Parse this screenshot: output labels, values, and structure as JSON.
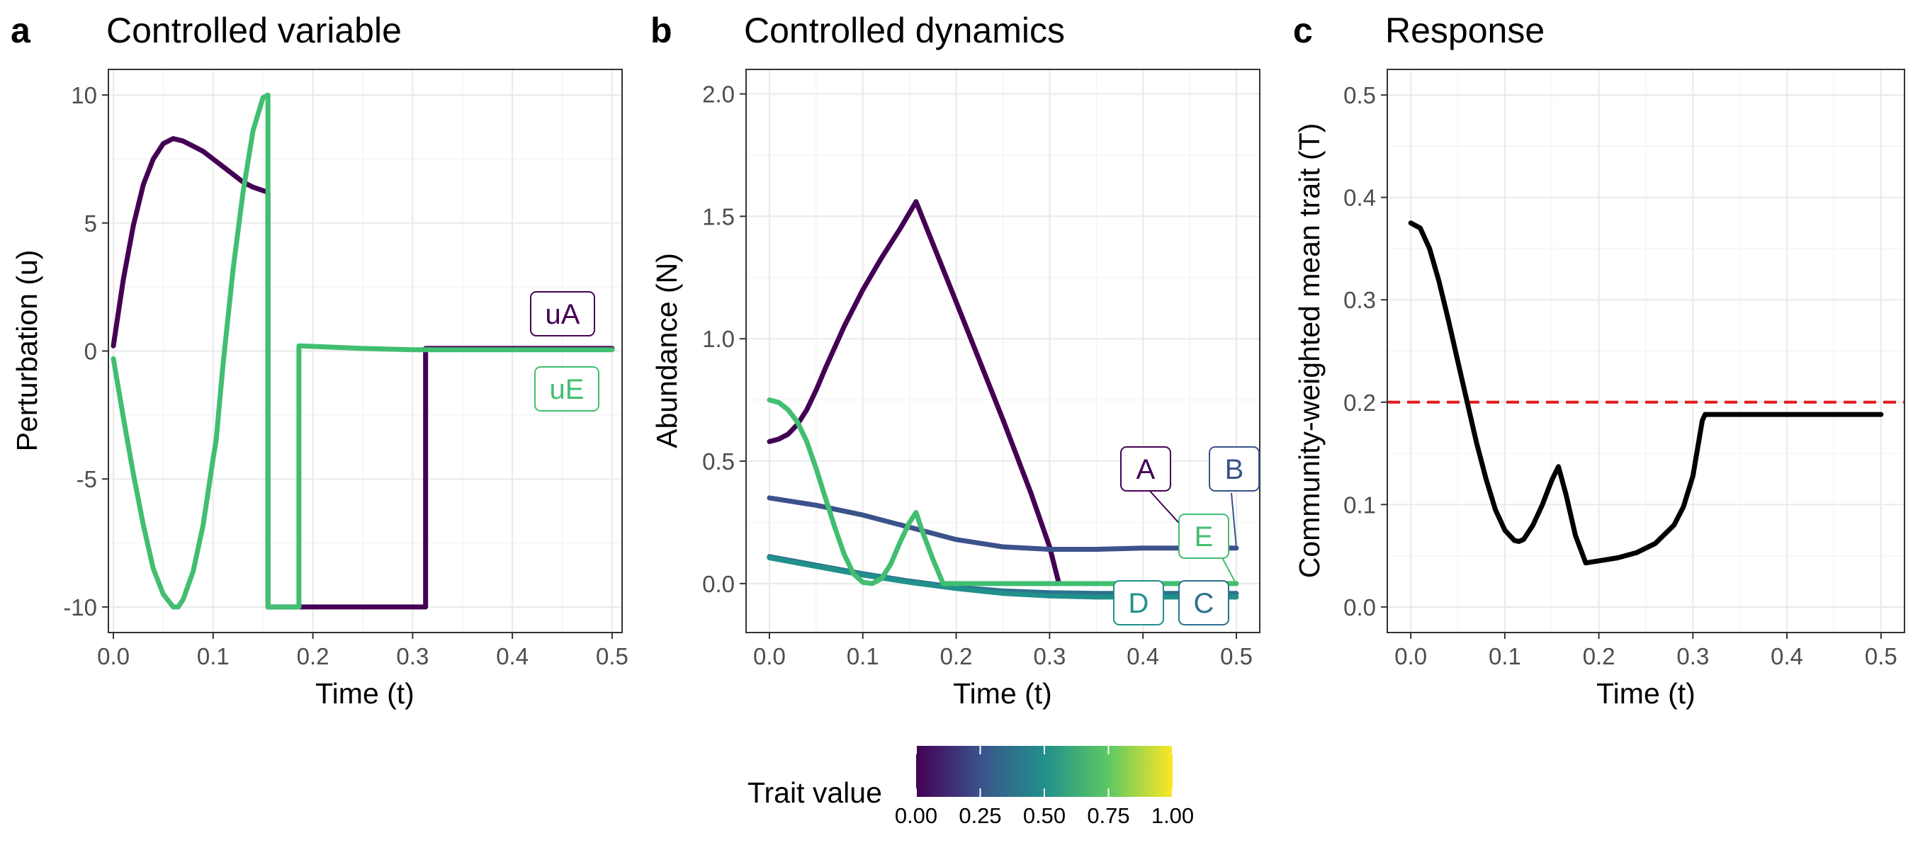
{
  "panels": [
    {
      "letter": "a",
      "title": "Controlled variable",
      "xlabel": "Time (t)",
      "ylabel": "Perturbation (u)",
      "x_ticks": [
        "0.0",
        "0.1",
        "0.2",
        "0.3",
        "0.4",
        "0.5"
      ],
      "y_ticks": [
        "-10",
        "-5",
        "0",
        "5",
        "10"
      ],
      "labels": [
        {
          "text": "uA",
          "color": "#440154"
        },
        {
          "text": "uE",
          "color": "#42BE71"
        }
      ]
    },
    {
      "letter": "b",
      "title": "Controlled dynamics",
      "xlabel": "Time (t)",
      "ylabel": "Abundance (N)",
      "x_ticks": [
        "0.0",
        "0.1",
        "0.2",
        "0.3",
        "0.4",
        "0.5"
      ],
      "y_ticks": [
        "0.0",
        "0.5",
        "1.0",
        "1.5",
        "2.0"
      ],
      "labels": [
        {
          "text": "A",
          "color": "#440154"
        },
        {
          "text": "B",
          "color": "#3B528B"
        },
        {
          "text": "E",
          "color": "#42BE71"
        },
        {
          "text": "D",
          "color": "#21908C"
        },
        {
          "text": "C",
          "color": "#2C728E"
        }
      ]
    },
    {
      "letter": "c",
      "title": "Response",
      "xlabel": "Time (t)",
      "ylabel": "Community-weighted mean trait (T)",
      "x_ticks": [
        "0.0",
        "0.1",
        "0.2",
        "0.3",
        "0.4",
        "0.5"
      ],
      "y_ticks": [
        "0.0",
        "0.1",
        "0.2",
        "0.3",
        "0.4",
        "0.5"
      ]
    }
  ],
  "legend": {
    "title": "Trait value",
    "ticks": [
      "0.00",
      "0.25",
      "0.50",
      "0.75",
      "1.00"
    ],
    "colors": [
      "#440154",
      "#3B528B",
      "#21908C",
      "#5DC863",
      "#FDE725"
    ]
  },
  "chart_data": [
    {
      "type": "line",
      "title": "Controlled variable",
      "xlabel": "Time (t)",
      "ylabel": "Perturbation (u)",
      "xlim": [
        -0.005,
        0.51
      ],
      "ylim": [
        -11,
        11
      ],
      "series": [
        {
          "name": "uA",
          "color": "#440154",
          "x": [
            0,
            0.01,
            0.02,
            0.03,
            0.04,
            0.05,
            0.06,
            0.07,
            0.08,
            0.09,
            0.1,
            0.11,
            0.12,
            0.13,
            0.14,
            0.155,
            0.155,
            0.18,
            0.2,
            0.25,
            0.3,
            0.313,
            0.313,
            0.35,
            0.4,
            0.45,
            0.5
          ],
          "y": [
            0.2,
            2.8,
            4.9,
            6.5,
            7.5,
            8.1,
            8.3,
            8.2,
            8.0,
            7.8,
            7.5,
            7.2,
            6.9,
            6.6,
            6.4,
            6.2,
            -10,
            -10,
            -10,
            -10,
            -10,
            -10,
            0.1,
            0.1,
            0.1,
            0.1,
            0.1
          ]
        },
        {
          "name": "uE",
          "color": "#42BE71",
          "x": [
            0,
            0.01,
            0.02,
            0.03,
            0.04,
            0.05,
            0.06,
            0.065,
            0.07,
            0.08,
            0.09,
            0.1,
            0.103,
            0.11,
            0.12,
            0.13,
            0.14,
            0.15,
            0.155,
            0.155,
            0.16,
            0.18,
            0.186,
            0.186,
            0.2,
            0.25,
            0.3,
            0.35,
            0.4,
            0.45,
            0.5
          ],
          "y": [
            -0.3,
            -2.6,
            -4.8,
            -6.8,
            -8.5,
            -9.5,
            -10,
            -10,
            -9.7,
            -8.6,
            -6.8,
            -4.2,
            -3.5,
            -0.5,
            3.2,
            6.2,
            8.6,
            9.9,
            10,
            -10,
            -10,
            -10,
            -10,
            0.2,
            0.18,
            0.1,
            0.05,
            0.05,
            0.05,
            0.05,
            0.05
          ]
        }
      ]
    },
    {
      "type": "line",
      "title": "Controlled dynamics",
      "xlabel": "Time (t)",
      "ylabel": "Abundance (N)",
      "xlim": [
        -0.025,
        0.525
      ],
      "ylim": [
        -0.2,
        2.1
      ],
      "series": [
        {
          "name": "A",
          "color": "#440154",
          "x": [
            0,
            0.01,
            0.02,
            0.03,
            0.04,
            0.05,
            0.06,
            0.08,
            0.1,
            0.12,
            0.14,
            0.157,
            0.2,
            0.25,
            0.28,
            0.3,
            0.31
          ],
          "y": [
            0.58,
            0.59,
            0.61,
            0.65,
            0.71,
            0.79,
            0.88,
            1.05,
            1.2,
            1.33,
            1.45,
            1.56,
            1.15,
            0.67,
            0.37,
            0.15,
            0
          ]
        },
        {
          "name": "B",
          "color": "#3B528B",
          "x": [
            0,
            0.05,
            0.1,
            0.15,
            0.2,
            0.25,
            0.3,
            0.35,
            0.4,
            0.45,
            0.5
          ],
          "y": [
            0.35,
            0.32,
            0.28,
            0.23,
            0.18,
            0.15,
            0.14,
            0.14,
            0.145,
            0.145,
            0.145
          ]
        },
        {
          "name": "C",
          "color": "#2C728E",
          "x": [
            0,
            0.05,
            0.1,
            0.15,
            0.2,
            0.25,
            0.3,
            0.35,
            0.4,
            0.45,
            0.5
          ],
          "y": [
            0.11,
            0.075,
            0.04,
            0.01,
            -0.015,
            -0.03,
            -0.037,
            -0.04,
            -0.04,
            -0.04,
            -0.04
          ]
        },
        {
          "name": "D",
          "color": "#21908C",
          "x": [
            0,
            0.05,
            0.1,
            0.15,
            0.2,
            0.25,
            0.3,
            0.35,
            0.4,
            0.45,
            0.5
          ],
          "y": [
            0.105,
            0.07,
            0.035,
            0.005,
            -0.02,
            -0.04,
            -0.05,
            -0.055,
            -0.055,
            -0.055,
            -0.055
          ]
        },
        {
          "name": "E",
          "color": "#42BE71",
          "x": [
            0,
            0.01,
            0.02,
            0.03,
            0.04,
            0.05,
            0.06,
            0.07,
            0.08,
            0.09,
            0.1,
            0.11,
            0.12,
            0.13,
            0.14,
            0.15,
            0.157,
            0.165,
            0.175,
            0.186,
            0.2,
            0.25,
            0.3,
            0.35,
            0.4,
            0.45,
            0.5
          ],
          "y": [
            0.75,
            0.74,
            0.71,
            0.66,
            0.58,
            0.47,
            0.35,
            0.23,
            0.12,
            0.04,
            0.005,
            0.0,
            0.02,
            0.08,
            0.17,
            0.25,
            0.29,
            0.2,
            0.1,
            0.0,
            0.0,
            0.0,
            0.0,
            0.0,
            0.0,
            0.0,
            0.0
          ]
        }
      ]
    },
    {
      "type": "line",
      "title": "Response",
      "xlabel": "Time (t)",
      "ylabel": "Community-weighted mean trait (T)",
      "xlim": [
        -0.025,
        0.525
      ],
      "ylim": [
        -0.025,
        0.525
      ],
      "reference_line": {
        "y": 0.2,
        "color": "#E41A1C",
        "style": "dashed"
      },
      "series": [
        {
          "color": "#000000",
          "x": [
            0,
            0.01,
            0.02,
            0.03,
            0.04,
            0.05,
            0.06,
            0.07,
            0.08,
            0.09,
            0.1,
            0.11,
            0.115,
            0.12,
            0.13,
            0.14,
            0.15,
            0.157,
            0.165,
            0.175,
            0.186,
            0.2,
            0.22,
            0.24,
            0.26,
            0.28,
            0.29,
            0.3,
            0.305,
            0.31,
            0.313,
            0.35,
            0.4,
            0.45,
            0.5
          ],
          "y": [
            0.375,
            0.37,
            0.35,
            0.318,
            0.28,
            0.24,
            0.2,
            0.16,
            0.125,
            0.095,
            0.075,
            0.065,
            0.064,
            0.066,
            0.08,
            0.1,
            0.124,
            0.137,
            0.11,
            0.07,
            0.043,
            0.045,
            0.048,
            0.053,
            0.062,
            0.08,
            0.098,
            0.128,
            0.155,
            0.182,
            0.188,
            0.188,
            0.188,
            0.188,
            0.188
          ]
        }
      ]
    }
  ]
}
